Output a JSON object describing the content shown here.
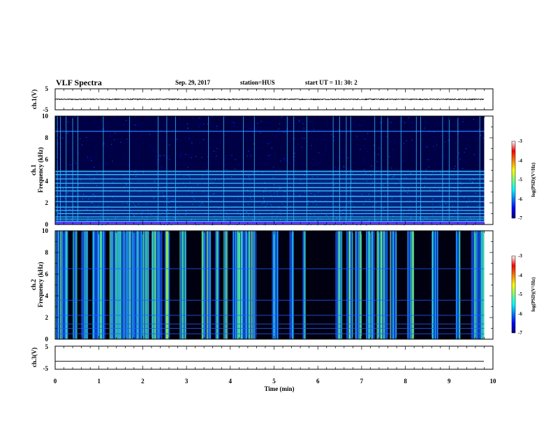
{
  "header": {
    "title": "VLF Spectra",
    "date": "Sep. 29, 2017",
    "station": "station=HUS",
    "start": "start  UT =   11: 30: 2"
  },
  "colors": {
    "background": "#000033",
    "trace": "#000000",
    "colormap": [
      "#00007f",
      "#0000ff",
      "#0080ff",
      "#00ffff",
      "#80ff80",
      "#ffff00",
      "#ff8000",
      "#ff0000",
      "#ffffff"
    ]
  },
  "chart_data": [
    {
      "type": "line",
      "ylabel": "ch.1(V)",
      "ylim": [
        -5,
        5
      ],
      "yticks": [
        "5",
        "-5"
      ],
      "xlim": [
        0,
        10
      ],
      "series": [
        {
          "level": 0.0,
          "noise": 0.25,
          "x_end": 9.8
        }
      ]
    },
    {
      "type": "heatmap",
      "ylabel": "ch.1\nFrequency (kHz)",
      "ylim": [
        0,
        10
      ],
      "yticks": [
        "10",
        "8",
        "6",
        "4",
        "2",
        "0"
      ],
      "xlim": [
        0,
        10
      ],
      "x_end": 9.8,
      "colorbar": {
        "label": "log(PSD)(V²/Hz)",
        "range": [
          -7,
          -3
        ],
        "ticks": [
          "-3",
          "-4",
          "-5",
          "-6",
          "-7"
        ]
      },
      "horizontal_lines_khz": [
        0.3,
        0.5,
        0.7,
        1.0,
        1.3,
        1.6,
        2.1,
        2.6,
        3.1,
        3.4,
        3.8,
        4.2,
        4.6,
        4.9,
        8.6
      ],
      "spike_times_min": [
        0.05,
        0.12,
        0.25,
        0.4,
        0.52,
        1.1,
        1.7,
        2.35,
        2.55,
        2.75,
        3.5,
        3.85,
        4.3,
        4.55,
        5.3,
        5.45,
        5.75,
        6.35,
        6.5,
        6.65,
        6.75,
        7.3,
        7.45,
        7.6,
        7.9,
        8.25,
        8.35,
        8.85,
        9.0,
        9.2,
        9.7
      ]
    },
    {
      "type": "heatmap",
      "ylabel": "ch.2\nFrequency (kHz)",
      "ylim": [
        0,
        10
      ],
      "yticks": [
        "10",
        "8",
        "6",
        "4",
        "2",
        "0"
      ],
      "xlim": [
        0,
        10
      ],
      "x_end": 9.8,
      "colorbar": {
        "label": "log(PSD)(V²/Hz)",
        "range": [
          -7,
          -3
        ],
        "ticks": [
          "-3",
          "-4",
          "-5",
          "-6",
          "-7"
        ]
      },
      "horizontal_lines_khz": [
        0.5,
        1.0,
        1.4,
        2.2,
        3.6,
        6.5
      ],
      "active_bands_min": [
        [
          0.0,
          0.3
        ],
        [
          0.4,
          0.5
        ],
        [
          0.6,
          0.75
        ],
        [
          0.85,
          1.15
        ],
        [
          1.25,
          2.15
        ],
        [
          2.2,
          2.45
        ],
        [
          2.5,
          2.62
        ],
        [
          2.85,
          3.0
        ],
        [
          3.35,
          3.55
        ],
        [
          3.65,
          3.75
        ],
        [
          3.85,
          3.95
        ],
        [
          4.05,
          4.6
        ],
        [
          4.95,
          5.1
        ],
        [
          5.35,
          5.45
        ],
        [
          5.65,
          5.72
        ],
        [
          6.4,
          6.55
        ],
        [
          6.65,
          6.8
        ],
        [
          6.85,
          7.0
        ],
        [
          7.1,
          7.3
        ],
        [
          7.35,
          7.6
        ],
        [
          7.65,
          7.8
        ],
        [
          8.05,
          8.2
        ],
        [
          8.6,
          8.75
        ],
        [
          9.15,
          9.25
        ],
        [
          9.5,
          9.8
        ]
      ]
    },
    {
      "type": "line",
      "ylabel": "ch.3(V)",
      "ylim": [
        -5,
        5
      ],
      "yticks": [
        "5",
        "-5"
      ],
      "xlim": [
        0,
        10
      ],
      "series": [
        {
          "level": -1.5,
          "noise": 0.0,
          "x_end": 9.8
        }
      ]
    }
  ],
  "xaxis": {
    "label": "Time  (min)",
    "ticks": [
      "0",
      "1",
      "2",
      "3",
      "4",
      "5",
      "6",
      "7",
      "8",
      "9",
      "10"
    ]
  }
}
